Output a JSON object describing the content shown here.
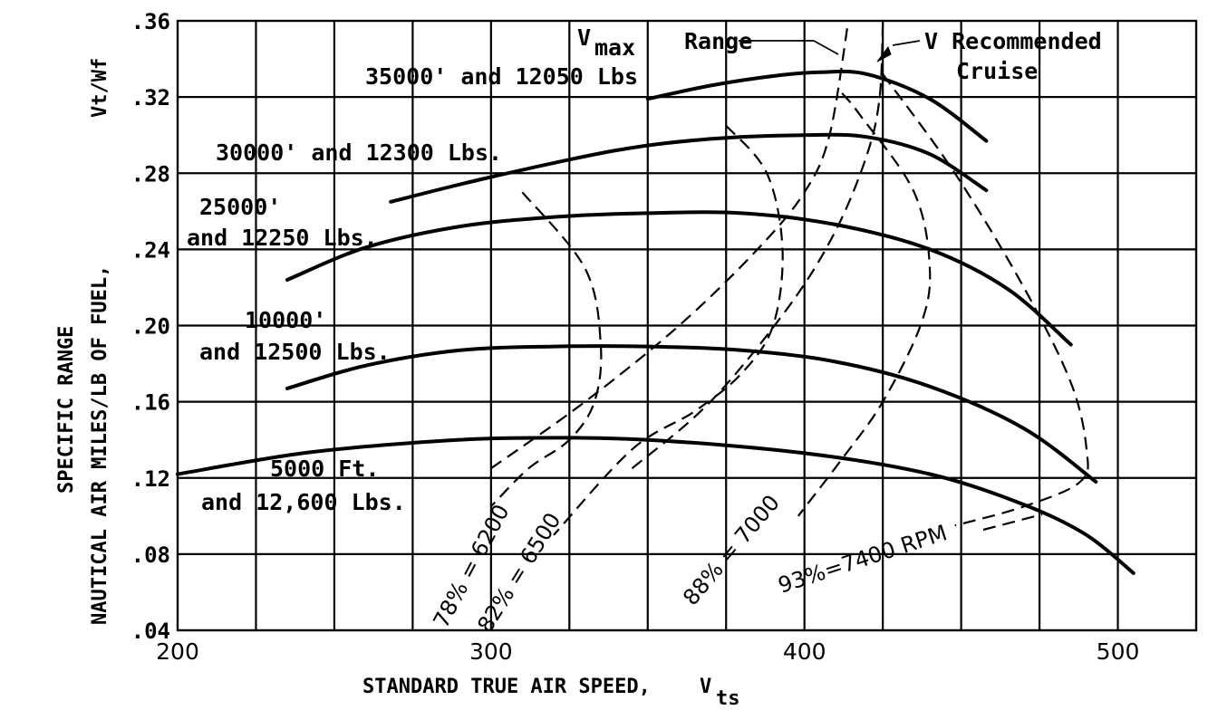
{
  "chart_data": {
    "type": "line",
    "xlabel": "STANDARD TRUE AIR SPEED,",
    "xlabel_symbol": "V",
    "xlabel_sub": "ts",
    "ylabel_line1": "SPECIFIC RANGE",
    "ylabel_line2": "NAUTICAL AIR MILES/LB OF FUEL,",
    "ylabel_symbol": "Vt/Wf",
    "xlim": [
      200,
      525
    ],
    "ylim": [
      0.04,
      0.36
    ],
    "x_ticks": [
      "200",
      "300",
      "400",
      "500"
    ],
    "y_ticks": [
      ".04",
      ".08",
      ".12",
      ".16",
      ".20",
      ".24",
      ".28",
      ".32",
      ".36"
    ],
    "grid": true,
    "series": [
      {
        "name": "5000 Ft. and 12,600 Lbs.",
        "style": "solid",
        "x": [
          200,
          240,
          280,
          310,
          350,
          400,
          440,
          470,
          490,
          505
        ],
        "y": [
          0.122,
          0.133,
          0.139,
          0.141,
          0.14,
          0.133,
          0.122,
          0.106,
          0.09,
          0.07
        ]
      },
      {
        "name": "10000' and 12500 Lbs.",
        "style": "solid",
        "x": [
          235,
          260,
          290,
          320,
          350,
          380,
          410,
          440,
          470,
          493
        ],
        "y": [
          0.167,
          0.179,
          0.187,
          0.189,
          0.189,
          0.187,
          0.181,
          0.168,
          0.146,
          0.118
        ]
      },
      {
        "name": "25000' and 12250 Lbs.",
        "style": "solid",
        "x": [
          235,
          260,
          290,
          320,
          350,
          380,
          410,
          440,
          465,
          485
        ],
        "y": [
          0.224,
          0.241,
          0.252,
          0.257,
          0.259,
          0.259,
          0.253,
          0.24,
          0.219,
          0.19
        ]
      },
      {
        "name": "30000' and 12300 Lbs.",
        "style": "solid",
        "x": [
          268,
          300,
          340,
          370,
          400,
          420,
          440,
          458
        ],
        "y": [
          0.265,
          0.278,
          0.292,
          0.298,
          0.3,
          0.299,
          0.29,
          0.271
        ]
      },
      {
        "name": "35000' and 12050 Lbs",
        "style": "solid",
        "x": [
          350,
          370,
          390,
          405,
          420,
          440,
          458
        ],
        "y": [
          0.319,
          0.326,
          0.331,
          0.333,
          0.332,
          0.319,
          0.297
        ]
      },
      {
        "name": "78% = 6200",
        "style": "dashed",
        "x": [
          310,
          330,
          335,
          333,
          325,
          312,
          300
        ],
        "y": [
          0.27,
          0.23,
          0.19,
          0.16,
          0.14,
          0.125,
          0.105
        ]
      },
      {
        "name": "82% = 6500",
        "style": "dashed",
        "x": [
          375,
          388,
          393,
          390,
          380,
          365,
          345,
          320
        ],
        "y": [
          0.305,
          0.28,
          0.24,
          0.2,
          0.175,
          0.155,
          0.135,
          0.09
        ]
      },
      {
        "name": "88% = 7000",
        "style": "dashed",
        "x": [
          412,
          418,
          435,
          440,
          437,
          425,
          412,
          398
        ],
        "y": [
          0.322,
          0.31,
          0.27,
          0.23,
          0.2,
          0.16,
          0.13,
          0.1
        ]
      },
      {
        "name": "93%=7400 RPM",
        "style": "dashed",
        "x": [
          425,
          448,
          470,
          485,
          490,
          488,
          470,
          448
        ],
        "y": [
          0.332,
          0.28,
          0.22,
          0.17,
          0.135,
          0.118,
          0.105,
          0.095
        ]
      },
      {
        "name": "Vmax Range",
        "style": "dashed",
        "x": [
          300,
          330,
          360,
          385,
          400,
          408,
          414
        ],
        "y": [
          0.125,
          0.16,
          0.2,
          0.24,
          0.27,
          0.3,
          0.36
        ]
      },
      {
        "name": "V Recommended Cruise",
        "style": "dashed",
        "x": [
          345,
          370,
          395,
          410,
          420,
          424,
          425
        ],
        "y": [
          0.125,
          0.16,
          0.21,
          0.25,
          0.29,
          0.32,
          0.36
        ]
      }
    ],
    "annotations": [
      {
        "key": "a35",
        "text": "35000' and 12050 Lbs"
      },
      {
        "key": "a30",
        "text": "30000' and 12300 Lbs."
      },
      {
        "key": "a25a",
        "text": "25000'"
      },
      {
        "key": "a25b",
        "text": "and 12250 Lbs."
      },
      {
        "key": "a10a",
        "text": "10000'"
      },
      {
        "key": "a10b",
        "text": "and 12500 Lbs."
      },
      {
        "key": "a5a",
        "text": "5000 Ft."
      },
      {
        "key": "a5b",
        "text": "and 12,600 Lbs."
      },
      {
        "key": "r78",
        "text": "78% = 6200"
      },
      {
        "key": "r82",
        "text": "82% = 6500"
      },
      {
        "key": "r88",
        "text": "88% = 7000"
      },
      {
        "key": "r93",
        "text": "93%=7400 RPM"
      },
      {
        "key": "vmax",
        "text": "Range"
      },
      {
        "key": "vmax_sym",
        "text": "V"
      },
      {
        "key": "vmax_sub",
        "text": "max"
      },
      {
        "key": "vrec",
        "text": "V Recommended"
      },
      {
        "key": "vrec2",
        "text": "Cruise"
      }
    ]
  }
}
